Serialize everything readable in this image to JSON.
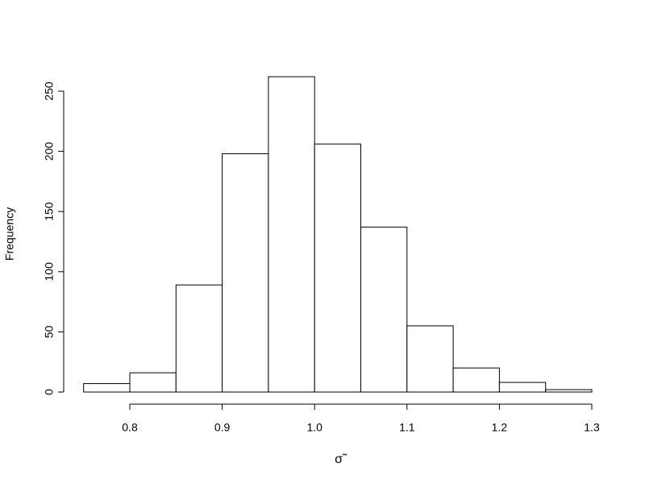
{
  "chart_data": {
    "type": "histogram",
    "x_label": "σ̃",
    "y_label": "Frequency",
    "bins": [
      0.75,
      0.8,
      0.85,
      0.9,
      0.95,
      1.0,
      1.05,
      1.1,
      1.15,
      1.2,
      1.25,
      1.3
    ],
    "counts": [
      7,
      16,
      89,
      198,
      262,
      206,
      137,
      55,
      20,
      8,
      2
    ],
    "color": "#ffffff",
    "xlim": [
      0.8,
      1.3
    ],
    "xticks": [
      0.8,
      0.9,
      {
        "value": 1.0,
        "label": "1.0"
      },
      1.1,
      1.2,
      1.3
    ],
    "ylim": [
      0,
      250
    ],
    "yticks": [
      0,
      50,
      100,
      150,
      200,
      250
    ]
  }
}
